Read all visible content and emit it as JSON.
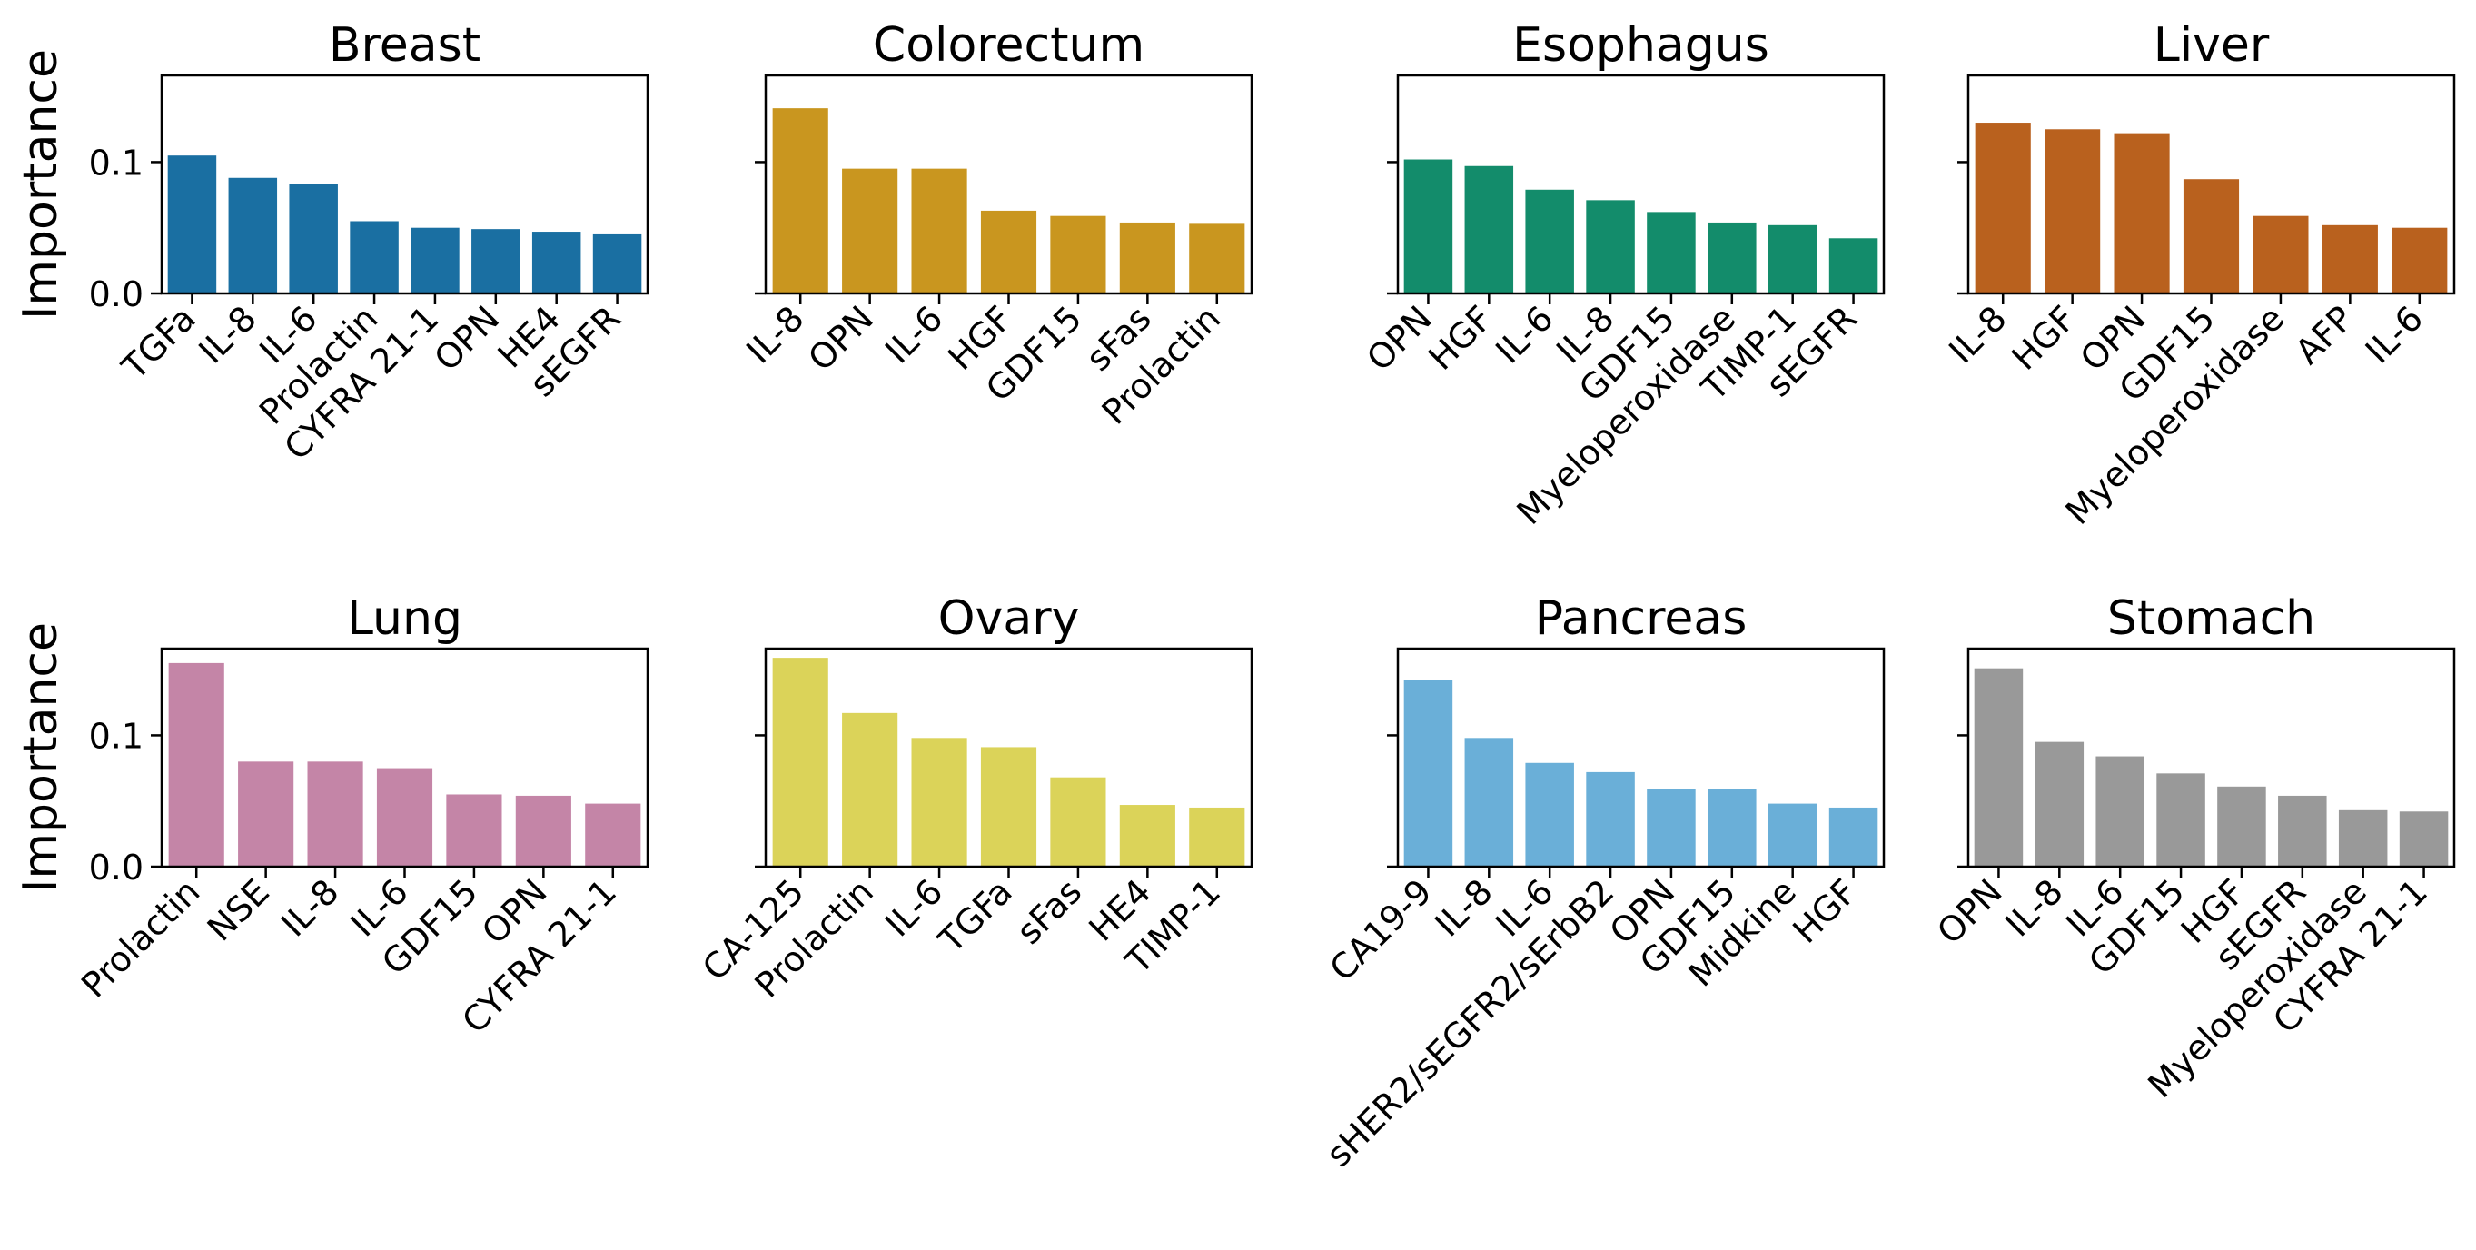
{
  "figure": {
    "ylabel": "Importance",
    "yticks": [
      "0.0",
      "0.1"
    ],
    "ytick_values": [
      0.0,
      0.1
    ]
  },
  "chart_data": [
    {
      "type": "bar",
      "title": "Breast",
      "color": "#1a6fa2",
      "ylabel": "Importance",
      "ylim": [
        0,
        0.166
      ],
      "categories": [
        "TGFa",
        "IL-8",
        "IL-6",
        "Prolactin",
        "CYFRA 21-1",
        "OPN",
        "HE4",
        "sEGFR"
      ],
      "values": [
        0.105,
        0.088,
        0.083,
        0.055,
        0.05,
        0.049,
        0.047,
        0.045
      ]
    },
    {
      "type": "bar",
      "title": "Colorectum",
      "color": "#c9961f",
      "ylabel": "",
      "ylim": [
        0,
        0.166
      ],
      "categories": [
        "IL-8",
        "OPN",
        "IL-6",
        "HGF",
        "GDF15",
        "sFas",
        "Prolactin"
      ],
      "values": [
        0.141,
        0.095,
        0.095,
        0.063,
        0.059,
        0.054,
        0.053
      ]
    },
    {
      "type": "bar",
      "title": "Esophagus",
      "color": "#138c6b",
      "ylabel": "",
      "ylim": [
        0,
        0.166
      ],
      "categories": [
        "OPN",
        "HGF",
        "IL-6",
        "IL-8",
        "GDF15",
        "Myeloperoxidase",
        "TIMP-1",
        "sEGFR"
      ],
      "values": [
        0.102,
        0.097,
        0.079,
        0.071,
        0.062,
        0.054,
        0.052,
        0.042
      ]
    },
    {
      "type": "bar",
      "title": "Liver",
      "color": "#b9611e",
      "ylabel": "",
      "ylim": [
        0,
        0.166
      ],
      "categories": [
        "IL-8",
        "HGF",
        "OPN",
        "GDF15",
        "Myeloperoxidase",
        "AFP",
        "IL-6"
      ],
      "values": [
        0.13,
        0.125,
        0.122,
        0.087,
        0.059,
        0.052,
        0.05
      ]
    },
    {
      "type": "bar",
      "title": "Lung",
      "color": "#c485a7",
      "ylabel": "Importance",
      "ylim": [
        0,
        0.166
      ],
      "categories": [
        "Prolactin",
        "NSE",
        "IL-8",
        "IL-6",
        "GDF15",
        "OPN",
        "CYFRA 21-1"
      ],
      "values": [
        0.155,
        0.08,
        0.08,
        0.075,
        0.055,
        0.054,
        0.048
      ]
    },
    {
      "type": "bar",
      "title": "Ovary",
      "color": "#dbd359",
      "ylabel": "",
      "ylim": [
        0,
        0.166
      ],
      "categories": [
        "CA-125",
        "Prolactin",
        "IL-6",
        "TGFa",
        "sFas",
        "HE4",
        "TIMP-1"
      ],
      "values": [
        0.159,
        0.117,
        0.098,
        0.091,
        0.068,
        0.047,
        0.045
      ]
    },
    {
      "type": "bar",
      "title": "Pancreas",
      "color": "#6aafd8",
      "ylabel": "",
      "ylim": [
        0,
        0.166
      ],
      "categories": [
        "CA19-9",
        "IL-8",
        "IL-6",
        "sHER2/sEGFR2/sErbB2",
        "OPN",
        "GDF15",
        "Midkine",
        "HGF"
      ],
      "values": [
        0.142,
        0.098,
        0.079,
        0.072,
        0.059,
        0.059,
        0.048,
        0.045
      ]
    },
    {
      "type": "bar",
      "title": "Stomach",
      "color": "#999999",
      "ylabel": "",
      "ylim": [
        0,
        0.166
      ],
      "categories": [
        "OPN",
        "IL-8",
        "IL-6",
        "GDF15",
        "HGF",
        "sEGFR",
        "Myeloperoxidase",
        "CYFRA 21-1"
      ],
      "values": [
        0.151,
        0.095,
        0.084,
        0.071,
        0.061,
        0.054,
        0.043,
        0.042
      ]
    }
  ]
}
